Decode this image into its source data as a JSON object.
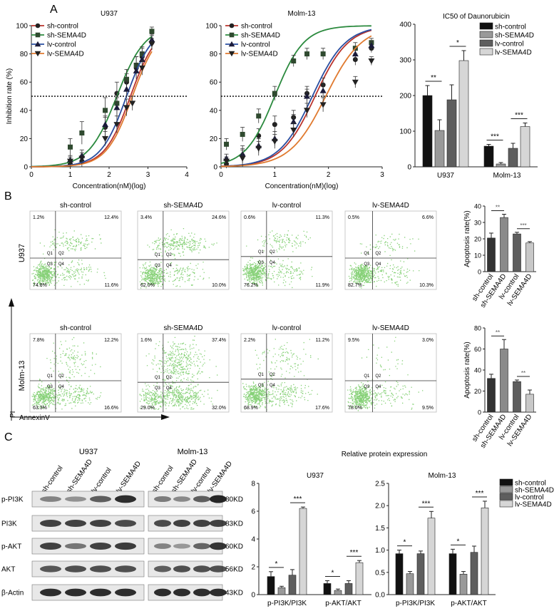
{
  "panels": {
    "A": "A",
    "B": "B",
    "C": "C"
  },
  "colors": {
    "sh_control": "#b9332c",
    "sh_sema4d": "#2b8a3e",
    "lv_control": "#2a4ea0",
    "lv_sema4d": "#e07a2f",
    "bar1": "#111111",
    "bar2": "#999999",
    "bar3": "#5e5e5e",
    "bar4": "#d6d6d6",
    "dots": "#5fc24b"
  },
  "legend": [
    "sh-control",
    "sh-SEMA4D",
    "lv-control",
    "lv-SEMA4D"
  ],
  "flow": {
    "axis_x": "AnnexinV",
    "axis_y": "PI",
    "row_labels": [
      "U937",
      "Molm-13"
    ],
    "col_titles": [
      "sh-control",
      "sh-SEMA4D",
      "lv-control",
      "lv-SEMA4D"
    ],
    "quadrant_names": [
      "Q1",
      "Q2",
      "Q3",
      "Q4"
    ],
    "u937": [
      {
        "ul": "1.2%",
        "ur": "12.4%",
        "ll": "74.8%",
        "lr": "11.6%"
      },
      {
        "ul": "3.4%",
        "ur": "24.6%",
        "ll": "62.0%",
        "lr": "10.0%"
      },
      {
        "ul": "0.6%",
        "ur": "11.3%",
        "ll": "76.2%",
        "lr": "11.9%"
      },
      {
        "ul": "0.5%",
        "ur": "6.6%",
        "ll": "82.7%",
        "lr": "10.3%"
      }
    ],
    "molm13": [
      {
        "ul": "7.8%",
        "ur": "12.2%",
        "ll": "63.3%",
        "lr": "16.6%"
      },
      {
        "ul": "1.6%",
        "ur": "37.4%",
        "ll": "29.0%",
        "lr": "32.0%"
      },
      {
        "ul": "2.2%",
        "ur": "11.2%",
        "ll": "68.9%",
        "lr": "17.6%"
      },
      {
        "ul": "9.5%",
        "ur": "3.0%",
        "ll": "78.0%",
        "lr": "9.5%"
      }
    ]
  },
  "western": {
    "cell_lines": [
      "U937",
      "Molm-13"
    ],
    "lanes": [
      "sh-control",
      "sh-SEMA4D",
      "lv-control",
      "lv-SEMA4D"
    ],
    "proteins": [
      "p-PI3K",
      "PI3K",
      "p-AKT",
      "AKT",
      "β-Actin"
    ],
    "sizes": [
      "80KD",
      "83KD",
      "60KD",
      "56KD",
      "43KD"
    ]
  },
  "chart_data": [
    {
      "type": "line",
      "id": "u937-inhibition",
      "title": "U937",
      "xlabel": "Concentration(nM)(log)",
      "ylabel": "Inhibition rate (%)",
      "xlim": [
        0,
        4
      ],
      "ylim": [
        0,
        100
      ],
      "xticks": [
        0,
        1,
        2,
        3,
        4
      ],
      "yticks": [
        0,
        20,
        40,
        60,
        80,
        100
      ],
      "threshold": 50,
      "legend_position": "top-left",
      "series": [
        {
          "name": "sh-control",
          "color": "#b9332c",
          "marker": "circle",
          "ec50": 2.55,
          "slope": 1.3,
          "points": [
            {
              "x": 1.0,
              "y": 2,
              "e": 3
            },
            {
              "x": 1.3,
              "y": 4,
              "e": 4
            },
            {
              "x": 1.9,
              "y": 28,
              "e": 7
            },
            {
              "x": 2.2,
              "y": 52,
              "e": 8
            },
            {
              "x": 2.45,
              "y": 60,
              "e": 6
            },
            {
              "x": 2.7,
              "y": 70,
              "e": 8
            },
            {
              "x": 2.85,
              "y": 78,
              "e": 6
            },
            {
              "x": 3.1,
              "y": 88,
              "e": 5
            }
          ]
        },
        {
          "name": "sh-SEMA4D",
          "color": "#2b8a3e",
          "marker": "square",
          "ec50": 2.2,
          "slope": 1.2,
          "points": [
            {
              "x": 1.0,
              "y": 14,
              "e": 6
            },
            {
              "x": 1.3,
              "y": 24,
              "e": 8
            },
            {
              "x": 1.9,
              "y": 40,
              "e": 9
            },
            {
              "x": 2.2,
              "y": 45,
              "e": 8
            },
            {
              "x": 2.45,
              "y": 62,
              "e": 7
            },
            {
              "x": 2.7,
              "y": 72,
              "e": 6
            },
            {
              "x": 2.85,
              "y": 80,
              "e": 5
            },
            {
              "x": 3.1,
              "y": 96,
              "e": 3
            }
          ]
        },
        {
          "name": "lv-control",
          "color": "#2a4ea0",
          "marker": "triangle",
          "ec50": 2.45,
          "slope": 1.3,
          "points": [
            {
              "x": 1.0,
              "y": 5,
              "e": 3
            },
            {
              "x": 1.3,
              "y": 8,
              "e": 4
            },
            {
              "x": 1.9,
              "y": 30,
              "e": 6
            },
            {
              "x": 2.2,
              "y": 42,
              "e": 7
            },
            {
              "x": 2.45,
              "y": 55,
              "e": 6
            },
            {
              "x": 2.7,
              "y": 68,
              "e": 5
            },
            {
              "x": 2.85,
              "y": 76,
              "e": 5
            },
            {
              "x": 3.1,
              "y": 90,
              "e": 4
            }
          ]
        },
        {
          "name": "lv-SEMA4D",
          "color": "#e07a2f",
          "marker": "triangle-down",
          "ec50": 2.6,
          "slope": 1.3,
          "points": [
            {
              "x": 1.0,
              "y": 4,
              "e": 3
            },
            {
              "x": 1.3,
              "y": 6,
              "e": 4
            },
            {
              "x": 1.9,
              "y": 20,
              "e": 5
            },
            {
              "x": 2.2,
              "y": 30,
              "e": 6
            },
            {
              "x": 2.45,
              "y": 42,
              "e": 6
            },
            {
              "x": 2.6,
              "y": 45,
              "e": 5
            },
            {
              "x": 2.85,
              "y": 70,
              "e": 5
            },
            {
              "x": 3.1,
              "y": 87,
              "e": 4
            }
          ]
        }
      ]
    },
    {
      "type": "line",
      "id": "molm13-inhibition",
      "title": "Molm-13",
      "xlabel": "Concentration(nM)(log)",
      "ylabel": "",
      "xlim": [
        0,
        3
      ],
      "ylim": [
        0,
        100
      ],
      "xticks": [
        0,
        1,
        2,
        3
      ],
      "yticks": [
        0,
        20,
        40,
        60,
        80,
        100
      ],
      "threshold": 50,
      "legend_position": "top-left",
      "series": [
        {
          "name": "sh-control",
          "color": "#b9332c",
          "marker": "circle",
          "ec50": 1.75,
          "slope": 1.4,
          "points": [
            {
              "x": 0.1,
              "y": 2,
              "e": 3
            },
            {
              "x": 0.4,
              "y": 8,
              "e": 5
            },
            {
              "x": 0.7,
              "y": 22,
              "e": 5
            },
            {
              "x": 1.0,
              "y": 30,
              "e": 6
            },
            {
              "x": 1.35,
              "y": 35,
              "e": 5
            },
            {
              "x": 1.6,
              "y": 52,
              "e": 5
            },
            {
              "x": 1.9,
              "y": 58,
              "e": 5
            },
            {
              "x": 2.5,
              "y": 76,
              "e": 4
            },
            {
              "x": 2.8,
              "y": 84,
              "e": 3
            }
          ]
        },
        {
          "name": "sh-SEMA4D",
          "color": "#2b8a3e",
          "marker": "square",
          "ec50": 1.0,
          "slope": 1.6,
          "points": [
            {
              "x": 0.1,
              "y": 16,
              "e": 4
            },
            {
              "x": 0.4,
              "y": 23,
              "e": 5
            },
            {
              "x": 0.7,
              "y": 36,
              "e": 5
            },
            {
              "x": 1.0,
              "y": 52,
              "e": 5
            },
            {
              "x": 1.35,
              "y": 75,
              "e": 4
            },
            {
              "x": 1.6,
              "y": 80,
              "e": 4
            },
            {
              "x": 1.9,
              "y": 80,
              "e": 4
            },
            {
              "x": 2.5,
              "y": 84,
              "e": 4
            },
            {
              "x": 2.8,
              "y": 88,
              "e": 3
            }
          ]
        },
        {
          "name": "lv-control",
          "color": "#2a4ea0",
          "marker": "triangle",
          "ec50": 1.7,
          "slope": 1.4,
          "points": [
            {
              "x": 0.1,
              "y": 6,
              "e": 3
            },
            {
              "x": 0.4,
              "y": 9,
              "e": 6
            },
            {
              "x": 0.7,
              "y": 15,
              "e": 5
            },
            {
              "x": 1.0,
              "y": 20,
              "e": 5
            },
            {
              "x": 1.35,
              "y": 32,
              "e": 5
            },
            {
              "x": 1.6,
              "y": 50,
              "e": 5
            },
            {
              "x": 1.9,
              "y": 54,
              "e": 5
            },
            {
              "x": 2.5,
              "y": 80,
              "e": 4
            },
            {
              "x": 2.8,
              "y": 86,
              "e": 3
            }
          ]
        },
        {
          "name": "lv-SEMA4D",
          "color": "#e07a2f",
          "marker": "triangle-down",
          "ec50": 1.95,
          "slope": 1.3,
          "points": [
            {
              "x": 0.1,
              "y": 4,
              "e": 3
            },
            {
              "x": 0.4,
              "y": 6,
              "e": 6
            },
            {
              "x": 0.7,
              "y": 13,
              "e": 5
            },
            {
              "x": 1.0,
              "y": 18,
              "e": 5
            },
            {
              "x": 1.35,
              "y": 26,
              "e": 5
            },
            {
              "x": 1.6,
              "y": 40,
              "e": 5
            },
            {
              "x": 1.9,
              "y": 44,
              "e": 5
            },
            {
              "x": 2.5,
              "y": 60,
              "e": 4
            },
            {
              "x": 2.8,
              "y": 75,
              "e": 3
            }
          ]
        }
      ]
    },
    {
      "type": "bar",
      "id": "ic50",
      "title": "IC50 of Daunorubicin",
      "ylabel": "",
      "categories": [
        "U937",
        "Molm-13"
      ],
      "ylim": [
        0,
        400
      ],
      "yticks": [
        0,
        100,
        200,
        300,
        400
      ],
      "legend_position": "top-right",
      "series": [
        {
          "name": "sh-control",
          "values": [
            200,
            58
          ],
          "errors": [
            28,
            5
          ],
          "color": "#111111"
        },
        {
          "name": "sh-SEMA4D",
          "values": [
            102,
            8
          ],
          "errors": [
            30,
            4
          ],
          "color": "#999999"
        },
        {
          "name": "lv-control",
          "values": [
            188,
            52
          ],
          "errors": [
            42,
            14
          ],
          "color": "#5e5e5e"
        },
        {
          "name": "lv-SEMA4D",
          "values": [
            298,
            113
          ],
          "errors": [
            28,
            10
          ],
          "color": "#d6d6d6"
        }
      ],
      "annotations": [
        {
          "cat": 0,
          "pair": [
            0,
            1
          ],
          "text": "**"
        },
        {
          "cat": 0,
          "pair": [
            2,
            3
          ],
          "text": "*"
        },
        {
          "cat": 1,
          "pair": [
            0,
            1
          ],
          "text": "***"
        },
        {
          "cat": 1,
          "pair": [
            2,
            3
          ],
          "text": "***"
        }
      ]
    },
    {
      "type": "bar",
      "id": "apoptosis-u937",
      "ylabel": "Apoptosis rate(%)",
      "categories": [
        "sh-control",
        "sh-SEMA4D",
        "lv-control",
        "lv-SEMA4D"
      ],
      "values": [
        20.5,
        33,
        23,
        17.5
      ],
      "errors": [
        3,
        2,
        1,
        0.8
      ],
      "colors": [
        "#333333",
        "#8a8a8a",
        "#5e5e5e",
        "#c8c8c8"
      ],
      "ylim": [
        0,
        40
      ],
      "yticks": [
        0,
        10,
        20,
        30,
        40
      ],
      "annotations": [
        {
          "pair": [
            0,
            1
          ],
          "text": "**"
        },
        {
          "pair": [
            2,
            3
          ],
          "text": "***"
        }
      ]
    },
    {
      "type": "bar",
      "id": "apoptosis-molm13",
      "ylabel": "Apoptosis rate(%)",
      "categories": [
        "sh-control",
        "sh-SEMA4D",
        "lv-control",
        "lv-SEMA4D"
      ],
      "values": [
        32,
        60,
        29,
        17
      ],
      "errors": [
        4,
        9,
        1.5,
        4
      ],
      "colors": [
        "#333333",
        "#8a8a8a",
        "#5e5e5e",
        "#c8c8c8"
      ],
      "ylim": [
        0,
        80
      ],
      "yticks": [
        0,
        20,
        40,
        60,
        80
      ],
      "annotations": [
        {
          "pair": [
            0,
            1
          ],
          "text": "**"
        },
        {
          "pair": [
            2,
            3
          ],
          "text": "**"
        }
      ]
    },
    {
      "type": "bar",
      "id": "protein-u937",
      "title": "U937",
      "supertitle": "Relative protein expression",
      "categories": [
        "p-PI3K/PI3K",
        "p-AKT/AKT"
      ],
      "ylim": [
        0,
        8
      ],
      "yticks": [
        0,
        2,
        4,
        6,
        8
      ],
      "series": [
        {
          "name": "sh-control",
          "values": [
            1.3,
            0.8
          ],
          "errors": [
            0.35,
            0.2
          ],
          "color": "#111111"
        },
        {
          "name": "sh-SEMA4D",
          "values": [
            0.5,
            0.3
          ],
          "errors": [
            0.1,
            0.1
          ],
          "color": "#999999"
        },
        {
          "name": "lv-control",
          "values": [
            1.4,
            0.8
          ],
          "errors": [
            0.4,
            0.2
          ],
          "color": "#5e5e5e"
        },
        {
          "name": "lv-SEMA4D",
          "values": [
            6.2,
            2.3
          ],
          "errors": [
            0.1,
            0.15
          ],
          "color": "#d6d6d6"
        }
      ],
      "annotations": [
        {
          "cat": 0,
          "pair": [
            0,
            1
          ],
          "text": "*"
        },
        {
          "cat": 0,
          "pair": [
            2,
            3
          ],
          "text": "***"
        },
        {
          "cat": 1,
          "pair": [
            0,
            1
          ],
          "text": "*"
        },
        {
          "cat": 1,
          "pair": [
            2,
            3
          ],
          "text": "***"
        }
      ]
    },
    {
      "type": "bar",
      "id": "protein-molm13",
      "title": "Molm-13",
      "categories": [
        "p-PI3K/PI3K",
        "p-AKT/AKT"
      ],
      "ylim": [
        0,
        2.5
      ],
      "yticks": [
        0.0,
        0.5,
        1.0,
        1.5,
        2.0,
        2.5
      ],
      "legend_position": "right",
      "series": [
        {
          "name": "sh-control",
          "values": [
            0.92,
            0.92
          ],
          "errors": [
            0.08,
            0.1
          ],
          "color": "#111111"
        },
        {
          "name": "sh-SEMA4D",
          "values": [
            0.47,
            0.46
          ],
          "errors": [
            0.05,
            0.06
          ],
          "color": "#999999"
        },
        {
          "name": "lv-control",
          "values": [
            0.92,
            0.95
          ],
          "errors": [
            0.06,
            0.14
          ],
          "color": "#5e5e5e"
        },
        {
          "name": "lv-SEMA4D",
          "values": [
            1.72,
            1.95
          ],
          "errors": [
            0.15,
            0.15
          ],
          "color": "#d6d6d6"
        }
      ],
      "annotations": [
        {
          "cat": 0,
          "pair": [
            0,
            1
          ],
          "text": "*"
        },
        {
          "cat": 0,
          "pair": [
            2,
            3
          ],
          "text": "***"
        },
        {
          "cat": 1,
          "pair": [
            0,
            1
          ],
          "text": "*"
        },
        {
          "cat": 1,
          "pair": [
            2,
            3
          ],
          "text": "***"
        }
      ]
    }
  ]
}
